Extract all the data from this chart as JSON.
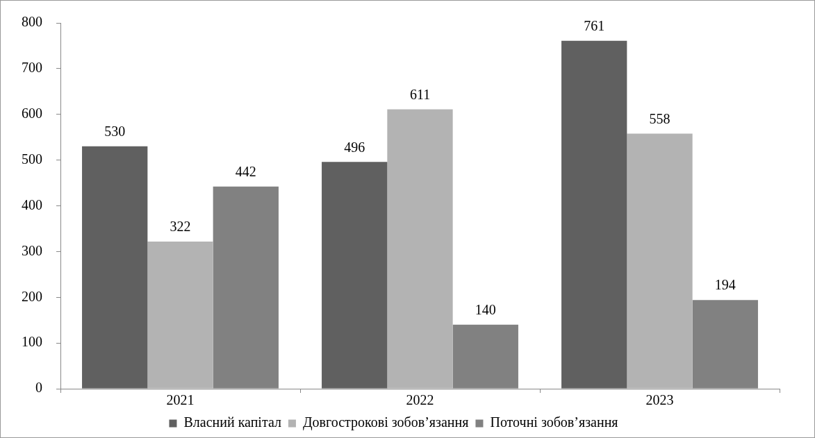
{
  "chart_data": {
    "type": "bar",
    "categories": [
      "2021",
      "2022",
      "2023"
    ],
    "series": [
      {
        "name": "Власний капітал",
        "color": "#606060",
        "values": [
          530,
          496,
          761
        ]
      },
      {
        "name": "Довгострокові зобов’язання",
        "color": "#b3b3b3",
        "values": [
          322,
          611,
          558
        ]
      },
      {
        "name": "Поточні зобов’язання",
        "color": "#818181",
        "values": [
          442,
          140,
          194
        ]
      }
    ],
    "ylim": [
      0,
      800
    ],
    "yticks": [
      0,
      100,
      200,
      300,
      400,
      500,
      600,
      700,
      800
    ],
    "grid": false,
    "legend": "bottom",
    "data_labels": true
  }
}
